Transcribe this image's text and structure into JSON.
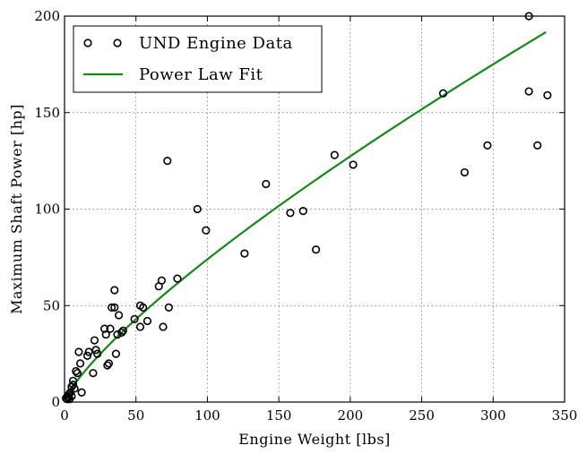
{
  "chart_data": {
    "type": "scatter",
    "xlabel": "Engine Weight [lbs]",
    "ylabel": "Maximum Shaft Power [hp]",
    "xlim": [
      0,
      350
    ],
    "ylim": [
      0,
      200
    ],
    "x_ticks": [
      0,
      50,
      100,
      150,
      200,
      250,
      300,
      350
    ],
    "y_ticks": [
      0,
      50,
      100,
      150,
      200
    ],
    "grid": true,
    "legend_placement": "top-left",
    "series": [
      {
        "name": "UND Engine Data",
        "kind": "scatter",
        "marker": "open-circle",
        "color": "#000000",
        "points": [
          [
            1,
            2
          ],
          [
            2,
            1.5
          ],
          [
            2,
            3
          ],
          [
            3,
            2.5
          ],
          [
            3,
            4
          ],
          [
            3.5,
            1.5
          ],
          [
            4,
            5
          ],
          [
            5,
            3
          ],
          [
            5,
            8
          ],
          [
            6,
            11
          ],
          [
            6,
            9
          ],
          [
            7,
            7
          ],
          [
            8,
            16
          ],
          [
            9,
            15
          ],
          [
            10,
            26
          ],
          [
            11,
            20
          ],
          [
            12,
            5
          ],
          [
            16,
            24
          ],
          [
            17,
            26
          ],
          [
            20,
            15
          ],
          [
            21,
            32
          ],
          [
            22,
            27
          ],
          [
            23,
            25
          ],
          [
            28,
            38
          ],
          [
            29,
            35
          ],
          [
            30,
            19
          ],
          [
            31,
            20
          ],
          [
            32,
            38
          ],
          [
            33,
            49
          ],
          [
            35,
            49
          ],
          [
            35,
            58
          ],
          [
            36,
            25
          ],
          [
            37,
            35
          ],
          [
            38,
            45
          ],
          [
            40,
            36
          ],
          [
            41,
            37
          ],
          [
            49,
            43
          ],
          [
            53,
            50
          ],
          [
            53,
            39
          ],
          [
            55,
            49
          ],
          [
            58,
            42
          ],
          [
            66,
            60
          ],
          [
            68,
            63
          ],
          [
            69,
            39
          ],
          [
            72,
            125
          ],
          [
            73,
            49
          ],
          [
            79,
            64
          ],
          [
            93,
            100
          ],
          [
            99,
            89
          ],
          [
            126,
            77
          ],
          [
            141,
            113
          ],
          [
            158,
            98
          ],
          [
            167,
            99
          ],
          [
            176,
            79
          ],
          [
            189,
            128
          ],
          [
            202,
            123
          ],
          [
            265,
            160
          ],
          [
            280,
            119
          ],
          [
            296,
            133
          ],
          [
            325,
            200
          ],
          [
            325,
            161
          ],
          [
            331,
            133
          ],
          [
            338,
            159
          ]
        ]
      },
      {
        "name": "Power Law Fit",
        "kind": "line",
        "color": "#138a13",
        "model": "P = a * W^b",
        "a": 2.0,
        "b": 0.784,
        "x_range": [
          1,
          337
        ]
      }
    ]
  }
}
